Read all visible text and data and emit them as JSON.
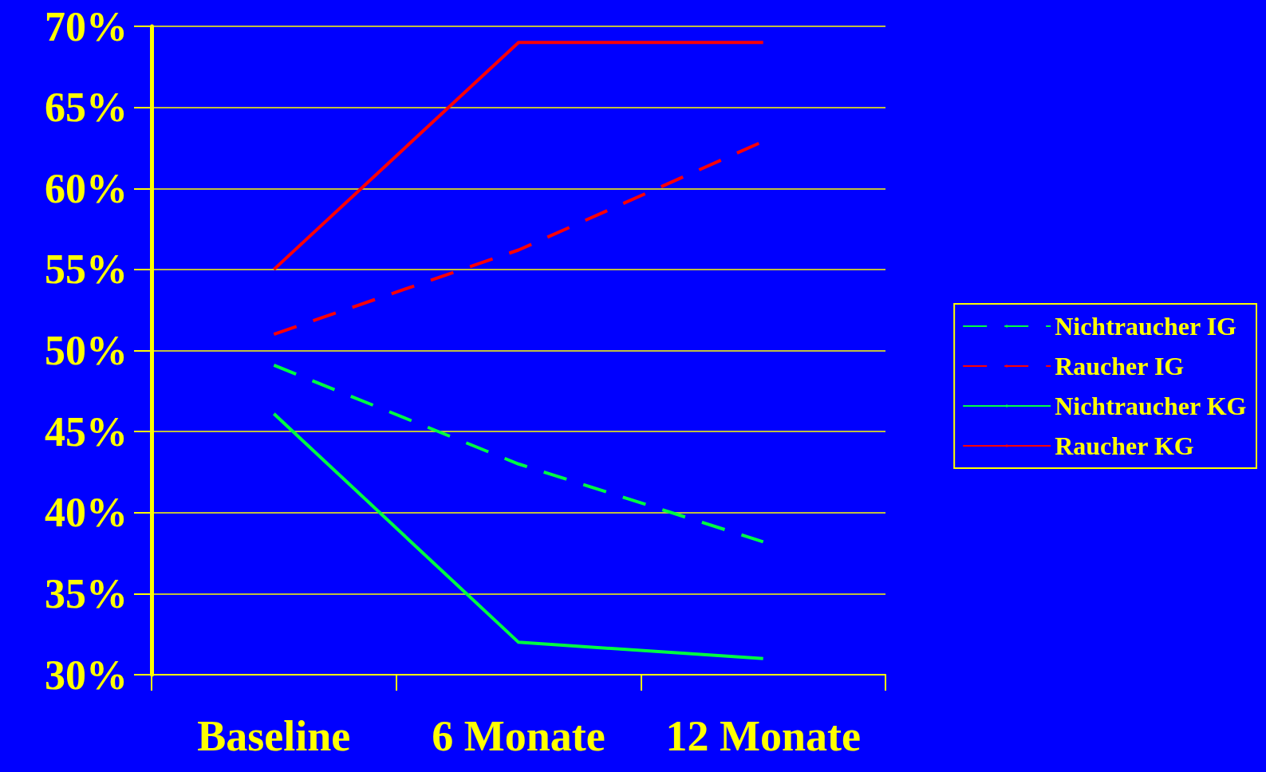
{
  "chart_data": {
    "type": "line",
    "categories": [
      "Baseline",
      "6 Monate",
      "12 Monate"
    ],
    "series": [
      {
        "name": "Nichtraucher IG",
        "color": "#00ff40",
        "line_style": "dashed",
        "values": [
          49.1,
          43,
          38.2
        ]
      },
      {
        "name": "Raucher IG",
        "color": "#ff0000",
        "line_style": "dashed",
        "values": [
          51,
          56.2,
          62.9
        ]
      },
      {
        "name": "Nichtraucher KG",
        "color": "#00ff40",
        "line_style": "solid",
        "values": [
          46.1,
          32,
          31
        ]
      },
      {
        "name": "Raucher KG",
        "color": "#ff0000",
        "line_style": "solid",
        "values": [
          55,
          69,
          69
        ]
      }
    ],
    "ylim": [
      30,
      70
    ],
    "yticks": [
      {
        "value": 30,
        "label": "30%"
      },
      {
        "value": 35,
        "label": "35%"
      },
      {
        "value": 40,
        "label": "40%"
      },
      {
        "value": 45,
        "label": "45%"
      },
      {
        "value": 50,
        "label": "50%"
      },
      {
        "value": 55,
        "label": "55%"
      },
      {
        "value": 60,
        "label": "60%"
      },
      {
        "value": 65,
        "label": "65%"
      },
      {
        "value": 70,
        "label": "70%"
      }
    ],
    "grid": "y",
    "legend": "right",
    "marker": "none"
  }
}
